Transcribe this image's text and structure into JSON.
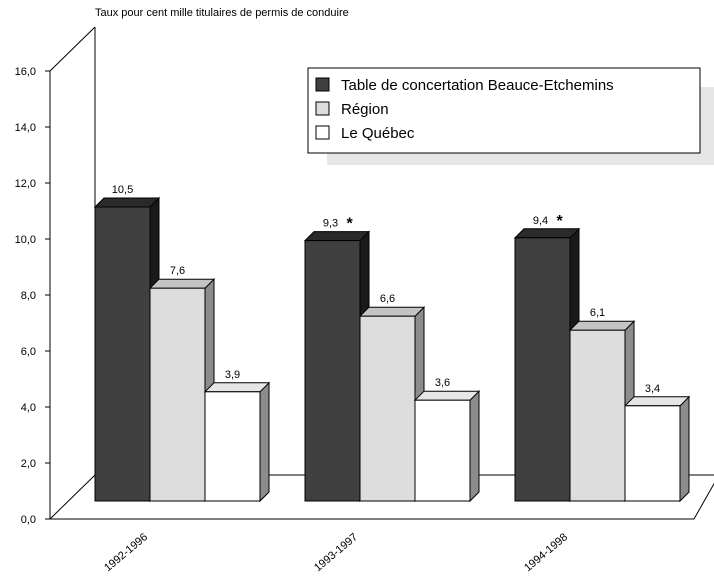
{
  "chart_data": {
    "type": "bar",
    "subtitle": "Taux pour cent mille titulaires de permis de conduire",
    "categories": [
      "1992-1996",
      "1993-1997",
      "1994-1998"
    ],
    "series": [
      {
        "name": "Table de concertation Beauce-Etchemins",
        "values": [
          10.5,
          9.3,
          9.4
        ],
        "labels": [
          "10,5",
          "9,3",
          "9,4"
        ],
        "flags": [
          "",
          "*",
          "*"
        ],
        "color": "#404040"
      },
      {
        "name": "Région",
        "values": [
          7.6,
          6.6,
          6.1
        ],
        "labels": [
          "7,6",
          "6,6",
          "6,1"
        ],
        "flags": [
          "",
          "",
          ""
        ],
        "color": "#dddddd"
      },
      {
        "name": "Le Québec",
        "values": [
          3.9,
          3.6,
          3.4
        ],
        "labels": [
          "3,9",
          "3,6",
          "3,4"
        ],
        "flags": [
          "",
          "",
          ""
        ],
        "color": "#ffffff"
      }
    ],
    "yticks": [
      "0,0",
      "2,0",
      "4,0",
      "6,0",
      "8,0",
      "10,0",
      "12,0",
      "14,0",
      "16,0"
    ],
    "ylim": [
      0,
      16
    ],
    "grid": false,
    "legend": "top-right",
    "style": "3d"
  }
}
